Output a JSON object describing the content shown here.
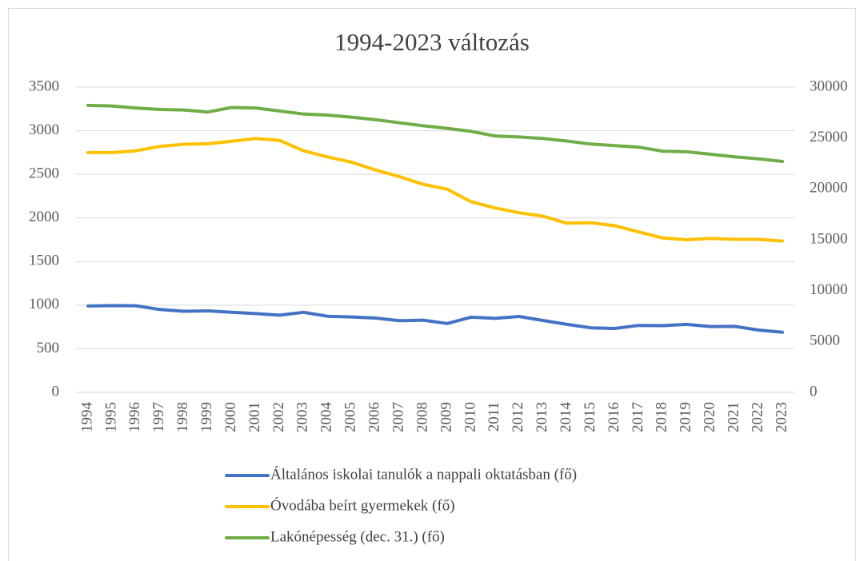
{
  "chart_data": {
    "type": "line",
    "title": "1994-2023 változás",
    "categories": [
      "1994",
      "1995",
      "1996",
      "1997",
      "1998",
      "1999",
      "2000",
      "2001",
      "2002",
      "2003",
      "2004",
      "2005",
      "2006",
      "2007",
      "2008",
      "2009",
      "2010",
      "2011",
      "2012",
      "2013",
      "2014",
      "2015",
      "2016",
      "2017",
      "2018",
      "2019",
      "2020",
      "2021",
      "2022",
      "2023"
    ],
    "series": [
      {
        "name": "Általános iskolai tanulók a nappali oktatásban (fő)",
        "color": "#4472c4",
        "axis": "y",
        "values": [
          990,
          995,
          993,
          950,
          930,
          935,
          918,
          903,
          885,
          918,
          873,
          865,
          852,
          822,
          828,
          790,
          862,
          848,
          870,
          825,
          780,
          740,
          733,
          768,
          765,
          780,
          755,
          757,
          715,
          690
        ]
      },
      {
        "name": "Óvodába beírt gyermekek (fő)",
        "color": "#ffc000",
        "axis": "y",
        "values": [
          2750,
          2750,
          2770,
          2820,
          2845,
          2850,
          2880,
          2910,
          2890,
          2770,
          2700,
          2640,
          2550,
          2475,
          2385,
          2330,
          2185,
          2115,
          2060,
          2020,
          1940,
          1945,
          1910,
          1840,
          1770,
          1750,
          1765,
          1755,
          1755,
          1735
        ]
      },
      {
        "name": "Lakónépesség (dec. 31.) (fő)",
        "color": "#70ad47",
        "axis": "y2",
        "values": [
          28200,
          28150,
          27950,
          27800,
          27750,
          27550,
          28000,
          27950,
          27650,
          27350,
          27250,
          27050,
          26800,
          26500,
          26200,
          25950,
          25650,
          25200,
          25100,
          24950,
          24700,
          24400,
          24250,
          24100,
          23700,
          23650,
          23400,
          23150,
          22950,
          22700
        ]
      }
    ],
    "ylim": [
      0,
      3500
    ],
    "yticks": [
      0,
      500,
      1000,
      1500,
      2000,
      2500,
      3000,
      3500
    ],
    "y2lim": [
      0,
      30000
    ],
    "y2ticks": [
      0,
      5000,
      10000,
      15000,
      20000,
      25000,
      30000
    ],
    "grid": true
  }
}
